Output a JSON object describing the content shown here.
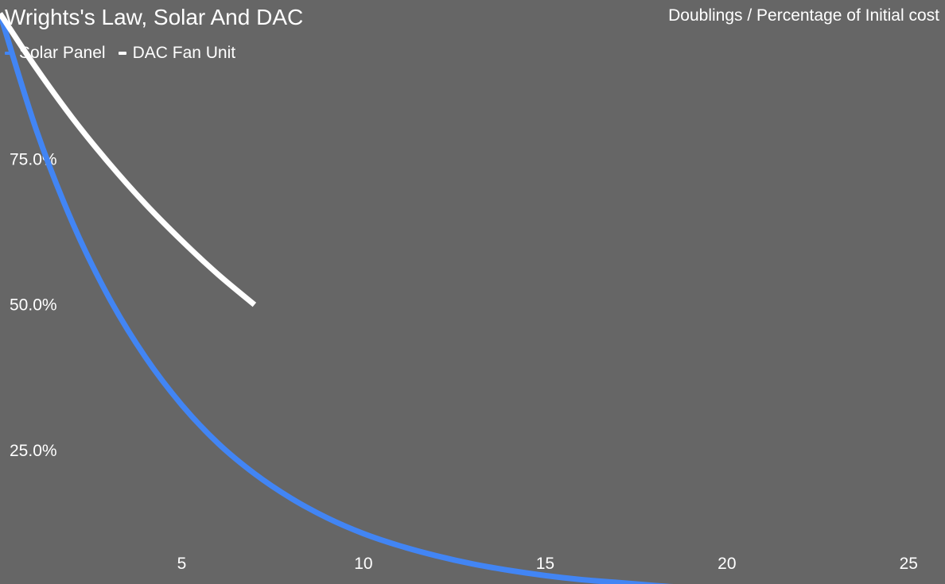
{
  "chart_data": {
    "type": "line",
    "title": "Wrights's Law, Solar And DAC",
    "subtitle": "Doublings / Percentage of Initial cost",
    "xlim": [
      0,
      26
    ],
    "ylim": [
      0,
      1
    ],
    "x_ticks": [
      {
        "value": 5,
        "label": "5"
      },
      {
        "value": 10,
        "label": "10"
      },
      {
        "value": 15,
        "label": "15"
      },
      {
        "value": 20,
        "label": "20"
      },
      {
        "value": 25,
        "label": "25"
      }
    ],
    "y_ticks": [
      {
        "value": 0.25,
        "label": "25.0%"
      },
      {
        "value": 0.5,
        "label": "50.0%"
      },
      {
        "value": 0.75,
        "label": "75.0%"
      }
    ],
    "grid": false,
    "legend_position": "top-left",
    "series": [
      {
        "name": "Solar Panel",
        "color": "#4285f4",
        "x": [
          0,
          1,
          2,
          3,
          4,
          5,
          6,
          7,
          8,
          9,
          10,
          11,
          12,
          13,
          14,
          15,
          16,
          17,
          18,
          19,
          20,
          21,
          22,
          23,
          24,
          25,
          26
        ],
        "y": [
          1.0,
          0.8,
          0.64,
          0.512,
          0.41,
          0.328,
          0.262,
          0.21,
          0.168,
          0.134,
          0.107,
          0.086,
          0.069,
          0.055,
          0.044,
          0.035,
          0.028,
          0.023,
          0.018,
          0.014,
          0.012,
          0.009,
          0.007,
          0.006,
          0.005,
          0.004,
          0.003
        ]
      },
      {
        "name": "DAC Fan Unit",
        "color": "#ffffff",
        "x": [
          0,
          1,
          2,
          3,
          4,
          5,
          6,
          7
        ],
        "y": [
          1.0,
          0.906,
          0.82,
          0.743,
          0.673,
          0.61,
          0.552,
          0.5
        ]
      }
    ]
  }
}
